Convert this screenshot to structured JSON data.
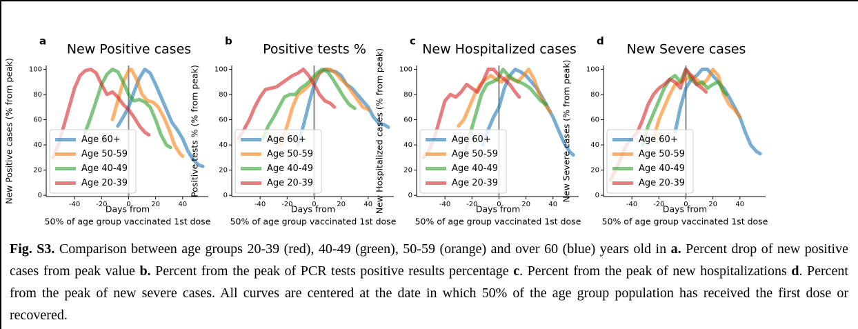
{
  "chart_data": [
    {
      "type": "line",
      "panel": "a",
      "title": "New Positive cases",
      "ylabel": "New Positive cases (% from peak)",
      "xlabel": [
        "Days from",
        "50% of age group vaccinated 1st dose"
      ],
      "xlim": [
        -61,
        59
      ],
      "ylim": [
        -1,
        103
      ],
      "xticks": [
        -40,
        -20,
        0,
        20,
        40
      ],
      "yticks": [
        0,
        20,
        40,
        60,
        80,
        100
      ],
      "vline": 0,
      "legend": "lower left",
      "series": [
        {
          "name": "Age 60+",
          "color": "#1f77b4",
          "x": [
            -8,
            -4,
            0,
            4,
            8,
            12,
            16,
            20,
            24,
            28,
            32,
            36,
            40,
            44,
            48,
            52,
            55
          ],
          "values": [
            55,
            62,
            70,
            82,
            93,
            100,
            97,
            88,
            78,
            68,
            58,
            52,
            45,
            35,
            28,
            24,
            23
          ]
        },
        {
          "name": "Age 50-59",
          "color": "#ff7f0e",
          "x": [
            -12,
            -8,
            -4,
            0,
            2,
            6,
            10,
            14,
            18,
            22,
            26,
            30,
            34,
            38,
            40
          ],
          "values": [
            60,
            75,
            90,
            99,
            100,
            92,
            80,
            75,
            74,
            70,
            62,
            52,
            40,
            33,
            31
          ]
        },
        {
          "name": "Age 40-49",
          "color": "#2ca02c",
          "x": [
            -32,
            -28,
            -24,
            -20,
            -16,
            -12,
            -8,
            -4,
            0,
            4,
            8,
            12,
            16,
            20,
            24,
            28,
            31
          ],
          "values": [
            50,
            62,
            75,
            88,
            96,
            100,
            98,
            90,
            80,
            75,
            76,
            74,
            70,
            60,
            48,
            40,
            38
          ]
        },
        {
          "name": "Age 20-39",
          "color": "#d62728",
          "x": [
            -56,
            -52,
            -48,
            -44,
            -40,
            -36,
            -32,
            -28,
            -24,
            -20,
            -16,
            -12,
            -8,
            -4,
            0,
            4,
            8,
            12,
            15
          ],
          "values": [
            30,
            40,
            55,
            70,
            85,
            95,
            99,
            100,
            97,
            88,
            80,
            82,
            78,
            72,
            68,
            62,
            55,
            50,
            48
          ]
        }
      ]
    },
    {
      "type": "line",
      "panel": "b",
      "title": "Positive tests %",
      "ylabel": "Positive tests % (% from peak)",
      "xlabel": [
        "Days from",
        "50% of age group vaccinated 1st dose"
      ],
      "xlim": [
        -61,
        59
      ],
      "ylim": [
        -1,
        103
      ],
      "xticks": [
        -40,
        -20,
        0,
        20,
        40
      ],
      "yticks": [
        0,
        20,
        40,
        60,
        80,
        100
      ],
      "vline": 0,
      "legend": "lower left",
      "series": [
        {
          "name": "Age 60+",
          "color": "#1f77b4",
          "x": [
            -12,
            -8,
            -4,
            0,
            4,
            8,
            12,
            16,
            20,
            24,
            28,
            32,
            36,
            40,
            44,
            48,
            52,
            55
          ],
          "values": [
            40,
            55,
            72,
            88,
            97,
            100,
            99,
            98,
            95,
            88,
            85,
            80,
            75,
            70,
            62,
            57,
            56,
            54
          ]
        },
        {
          "name": "Age 50-59",
          "color": "#ff7f0e",
          "x": [
            -25,
            -20,
            -16,
            -12,
            -8,
            -4,
            0,
            4,
            8,
            12,
            16,
            20,
            24,
            28,
            32,
            36,
            40
          ],
          "values": [
            40,
            55,
            70,
            80,
            83,
            87,
            92,
            97,
            100,
            100,
            97,
            92,
            88,
            82,
            76,
            70,
            68
          ]
        },
        {
          "name": "Age 40-49",
          "color": "#2ca02c",
          "x": [
            -38,
            -34,
            -30,
            -26,
            -22,
            -18,
            -14,
            -10,
            -6,
            -2,
            2,
            6,
            10,
            14,
            18,
            22,
            26,
            30
          ],
          "values": [
            45,
            55,
            62,
            70,
            78,
            80,
            80,
            85,
            88,
            92,
            97,
            100,
            98,
            92,
            85,
            78,
            72,
            69
          ]
        },
        {
          "name": "Age 20-39",
          "color": "#d62728",
          "x": [
            -56,
            -52,
            -48,
            -44,
            -40,
            -36,
            -32,
            -28,
            -24,
            -20,
            -16,
            -12,
            -8,
            -4,
            0,
            4,
            8,
            12,
            15
          ],
          "values": [
            45,
            52,
            60,
            70,
            78,
            84,
            85,
            86,
            89,
            92,
            95,
            97,
            100,
            95,
            88,
            80,
            75,
            73,
            70
          ]
        }
      ]
    },
    {
      "type": "line",
      "panel": "c",
      "title": "New Hospitalized cases",
      "ylabel": "New Hospitalized cases (% from peak)",
      "xlabel": [
        "Days from",
        "50% of age group vaccinated 1st dose"
      ],
      "xlim": [
        -61,
        59
      ],
      "ylim": [
        -1,
        103
      ],
      "xticks": [
        -40,
        -20,
        0,
        20,
        40
      ],
      "yticks": [
        0,
        20,
        40,
        60,
        80,
        100
      ],
      "vline": 0,
      "legend": "lower left",
      "series": [
        {
          "name": "Age 60+",
          "color": "#1f77b4",
          "x": [
            -12,
            -8,
            -4,
            0,
            4,
            8,
            12,
            16,
            20,
            24,
            28,
            32,
            36,
            40,
            44,
            48,
            52,
            55
          ],
          "values": [
            40,
            52,
            62,
            70,
            85,
            95,
            100,
            98,
            95,
            90,
            85,
            78,
            70,
            62,
            52,
            42,
            35,
            32
          ]
        },
        {
          "name": "Age 50-59",
          "color": "#ff7f0e",
          "x": [
            -30,
            -26,
            -22,
            -18,
            -14,
            -10,
            -6,
            -2,
            2,
            6,
            10,
            14,
            18,
            22,
            26,
            30,
            34,
            38
          ],
          "values": [
            55,
            60,
            70,
            80,
            88,
            92,
            95,
            92,
            90,
            94,
            92,
            90,
            95,
            100,
            92,
            80,
            72,
            66
          ]
        },
        {
          "name": "Age 40-49",
          "color": "#2ca02c",
          "x": [
            -25,
            -21,
            -17,
            -13,
            -9,
            -5,
            -1,
            3,
            7,
            11,
            15,
            19,
            23,
            27,
            31,
            35
          ],
          "values": [
            35,
            50,
            65,
            80,
            88,
            90,
            92,
            100,
            95,
            92,
            90,
            88,
            85,
            80,
            75,
            72
          ]
        },
        {
          "name": "Age 20-39",
          "color": "#d62728",
          "x": [
            -56,
            -52,
            -48,
            -44,
            -40,
            -36,
            -32,
            -28,
            -24,
            -20,
            -16,
            -12,
            -8,
            -4,
            0,
            4,
            8,
            12,
            15
          ],
          "values": [
            30,
            35,
            45,
            60,
            75,
            80,
            78,
            82,
            88,
            85,
            82,
            90,
            100,
            100,
            95,
            92,
            88,
            82,
            78
          ]
        }
      ]
    },
    {
      "type": "line",
      "panel": "d",
      "title": "New Severe cases",
      "ylabel": "New Severe cases (% from peak)",
      "xlabel": [
        "Days from",
        "50% of age group vaccinated 1st dose"
      ],
      "xlim": [
        -61,
        59
      ],
      "ylim": [
        -1,
        103
      ],
      "xticks": [
        -40,
        -20,
        0,
        20,
        40
      ],
      "yticks": [
        0,
        20,
        40,
        60,
        80,
        100
      ],
      "vline": 0,
      "legend": "lower left",
      "series": [
        {
          "name": "Age 60+",
          "color": "#1f77b4",
          "x": [
            -8,
            -4,
            0,
            4,
            8,
            12,
            16,
            20,
            24,
            28,
            32,
            36,
            40,
            44,
            48,
            52,
            55
          ],
          "values": [
            50,
            70,
            85,
            92,
            95,
            100,
            100,
            95,
            90,
            85,
            78,
            70,
            62,
            50,
            40,
            35,
            33
          ]
        },
        {
          "name": "Age 50-59",
          "color": "#ff7f0e",
          "x": [
            -24,
            -20,
            -16,
            -12,
            -8,
            -4,
            0,
            4,
            8,
            12,
            16,
            20,
            24,
            28,
            32,
            36,
            40
          ],
          "values": [
            45,
            60,
            70,
            80,
            88,
            90,
            92,
            95,
            92,
            88,
            92,
            100,
            95,
            80,
            72,
            68,
            62
          ]
        },
        {
          "name": "Age 40-49",
          "color": "#2ca02c",
          "x": [
            -32,
            -28,
            -24,
            -20,
            -16,
            -12,
            -8,
            -4,
            0,
            4,
            8,
            12,
            16,
            20,
            24,
            28,
            30
          ],
          "values": [
            40,
            55,
            65,
            75,
            85,
            92,
            95,
            90,
            100,
            92,
            88,
            90,
            85,
            88,
            90,
            82,
            80
          ]
        },
        {
          "name": "Age 20-39",
          "color": "#d62728",
          "x": [
            -56,
            -52,
            -48,
            -44,
            -40,
            -36,
            -32,
            -28,
            -24,
            -20,
            -16,
            -12,
            -8,
            -4,
            0,
            4,
            8,
            12,
            15
          ],
          "values": [
            12,
            20,
            30,
            40,
            45,
            50,
            60,
            72,
            80,
            85,
            88,
            92,
            90,
            85,
            100,
            95,
            88,
            85,
            82
          ]
        }
      ]
    }
  ],
  "caption": [
    {
      "text": "Fig. S3.",
      "bold": true
    },
    {
      "text": " Comparison between age groups 20-39 (red), 40-49 (green), 50-59 (orange) and over 60 (blue) years old in ",
      "bold": false
    },
    {
      "text": "a.",
      "bold": true
    },
    {
      "text": " Percent drop of new positive cases from peak value ",
      "bold": false
    },
    {
      "text": "b.",
      "bold": true
    },
    {
      "text": " Percent from the peak of PCR tests positive results percentage ",
      "bold": false
    },
    {
      "text": "c",
      "bold": true
    },
    {
      "text": ". Percent from the peak of new hospitalizations ",
      "bold": false
    },
    {
      "text": "d",
      "bold": true
    },
    {
      "text": ". Percent from the peak of new severe cases. All curves are centered at the date in which 50% of the age group population has received the first dose or recovered.",
      "bold": false
    }
  ]
}
